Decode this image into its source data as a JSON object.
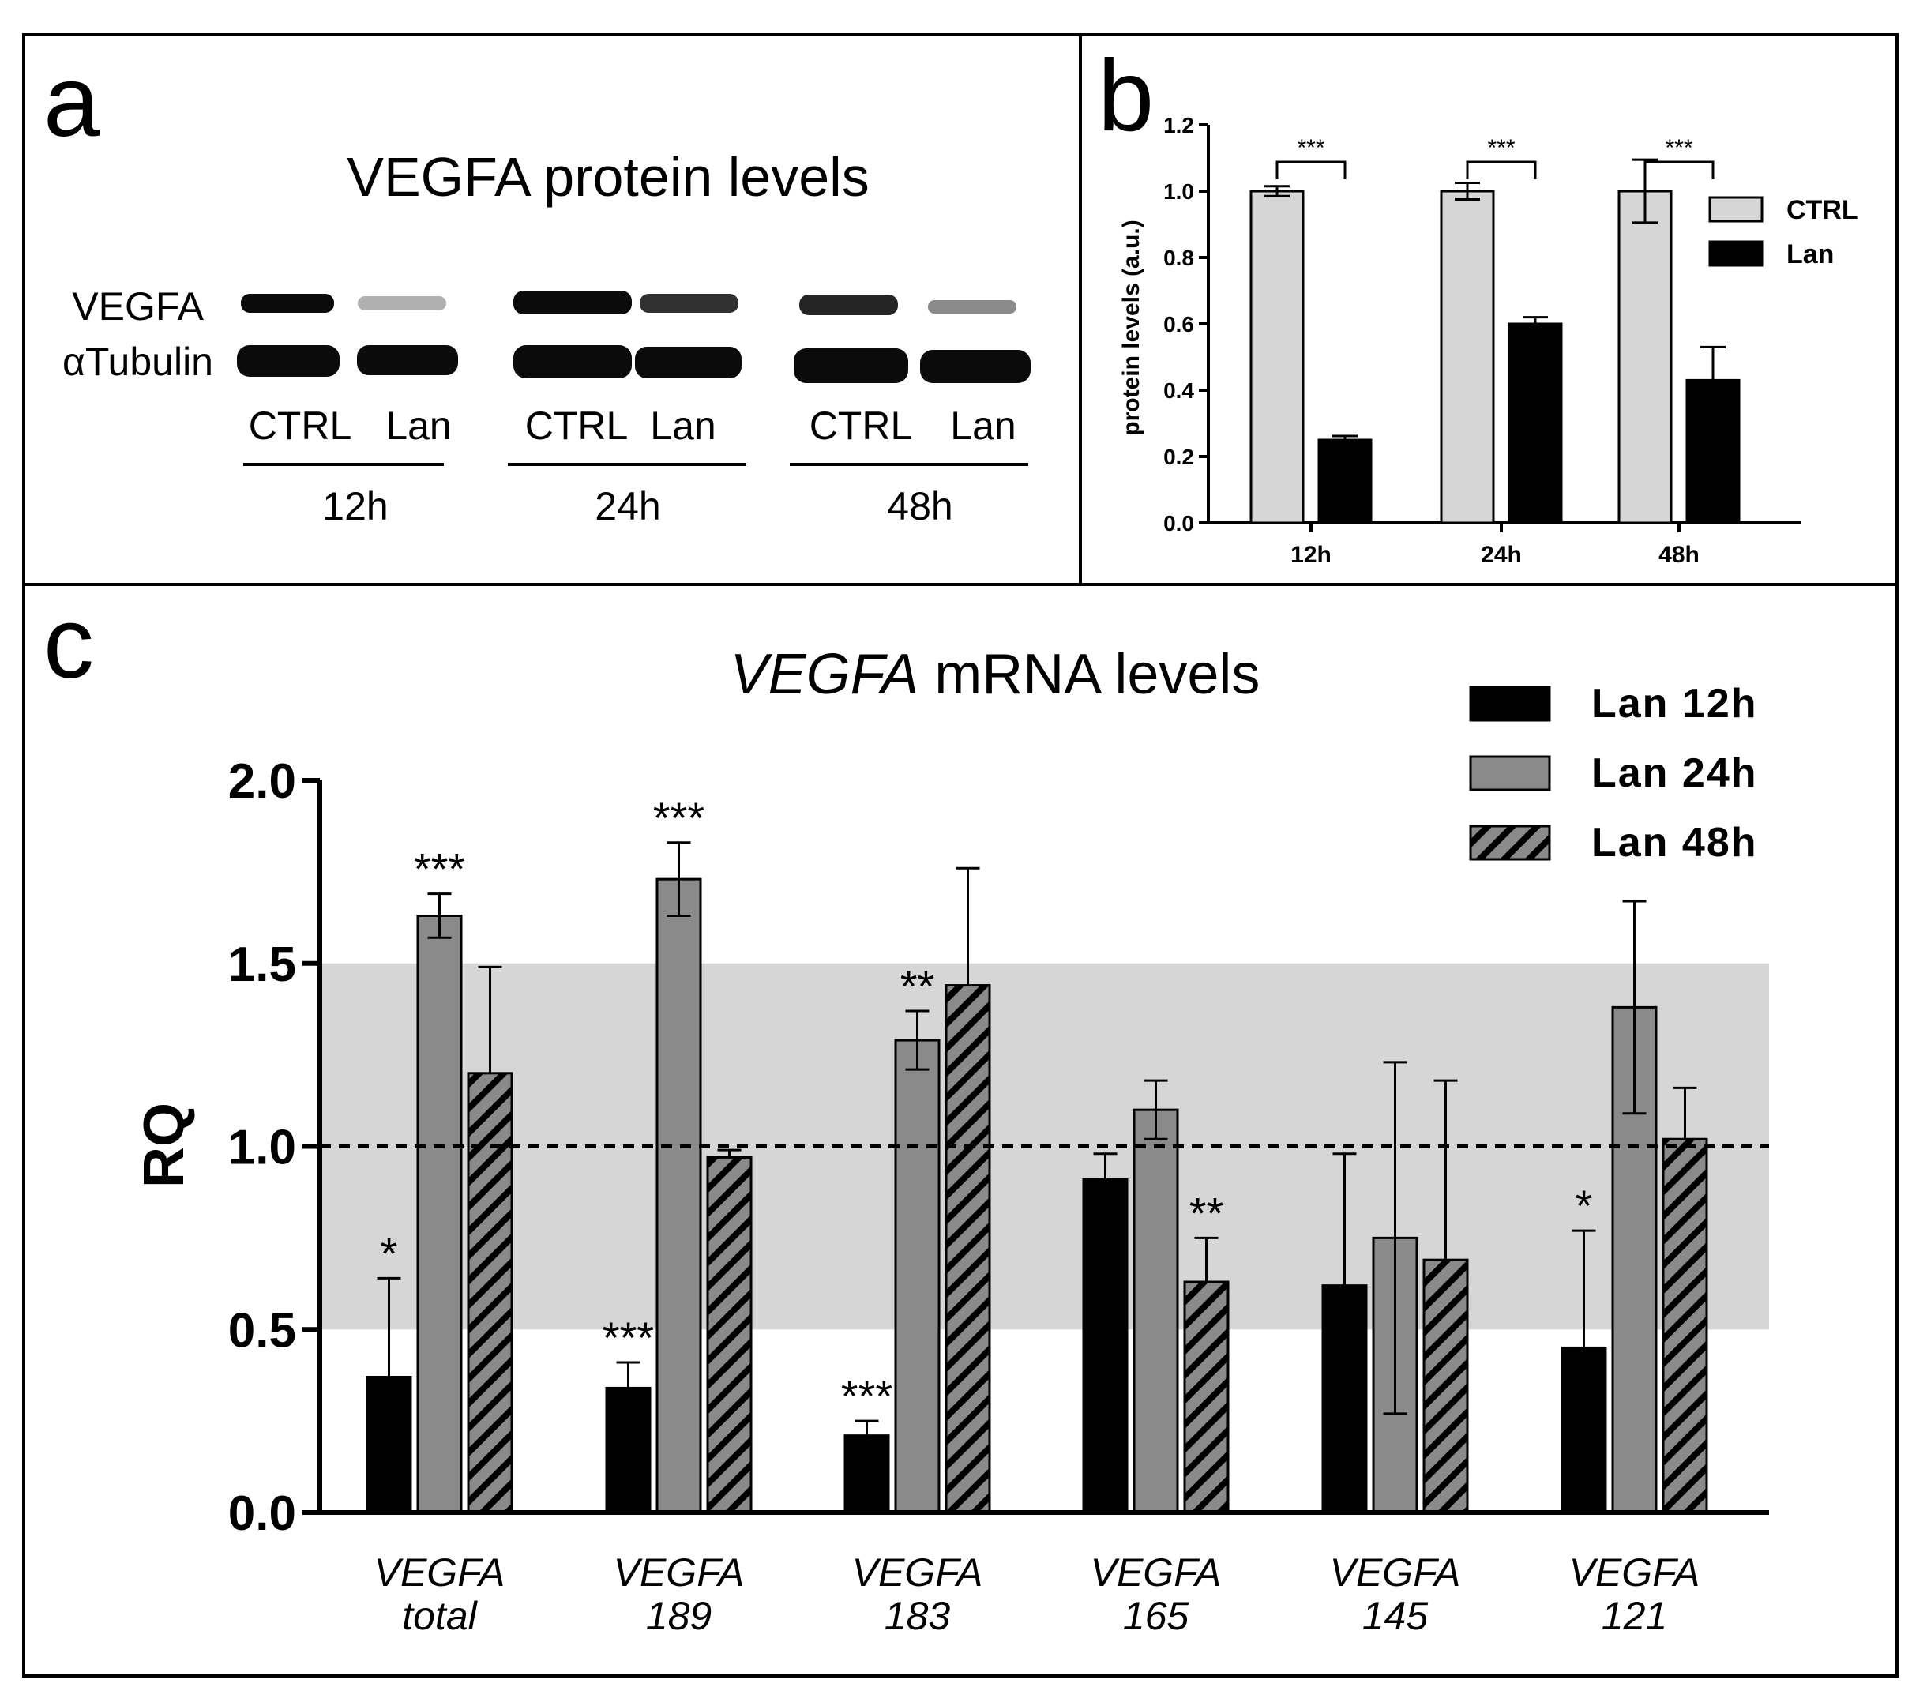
{
  "panel_a": {
    "letter": "a",
    "title": "VEGFA protein levels",
    "row_labels": [
      "VEGFA",
      "αTubulin"
    ],
    "lane_labels": [
      "CTRL",
      "Lan",
      "CTRL",
      "Lan",
      "CTRL",
      "Lan"
    ],
    "group_labels": [
      "12h",
      "24h",
      "48h"
    ]
  },
  "panel_b": {
    "letter": "b"
  },
  "panel_c": {
    "letter": "c",
    "title_italic": "VEGFA",
    "title_rest": " mRNA levels"
  },
  "chart_data": [
    {
      "id": "b",
      "type": "bar",
      "title": "",
      "xlabel": "",
      "ylabel": "protein levels (a.u.)",
      "ylim": [
        0,
        1.2
      ],
      "yticks": [
        0.0,
        0.2,
        0.4,
        0.6,
        0.8,
        1.0,
        1.2
      ],
      "ytick_labels": [
        "0.0",
        "0.2",
        "0.4",
        "0.6",
        "0.8",
        "1.0",
        "1.2"
      ],
      "categories": [
        "12h",
        "24h",
        "48h"
      ],
      "series": [
        {
          "name": "CTRL",
          "color": "#d6d6d6",
          "values": [
            1.0,
            1.0,
            1.0
          ],
          "errors": [
            0.015,
            0.025,
            0.095
          ]
        },
        {
          "name": "Lan",
          "color": "#000000",
          "values": [
            0.25,
            0.6,
            0.43
          ],
          "errors": [
            0.012,
            0.02,
            0.1
          ]
        }
      ],
      "significance": [
        "***",
        "***",
        "***"
      ],
      "legend": {
        "position": "top-right"
      }
    },
    {
      "id": "c",
      "type": "bar",
      "title": "VEGFA mRNA levels",
      "xlabel": "",
      "ylabel": "RQ",
      "ylim": [
        0,
        2.0
      ],
      "yticks": [
        0.0,
        0.5,
        1.0,
        1.5,
        2.0
      ],
      "ytick_labels": [
        "0.0",
        "0.5",
        "1.0",
        "1.5",
        "2.0"
      ],
      "reference_line": 1.0,
      "shaded_band": [
        0.5,
        1.5
      ],
      "categories": [
        {
          "line1": "VEGFA",
          "line2": "total"
        },
        {
          "line1": "VEGFA",
          "line2": "189"
        },
        {
          "line1": "VEGFA",
          "line2": "183"
        },
        {
          "line1": "VEGFA",
          "line2": "165"
        },
        {
          "line1": "VEGFA",
          "line2": "145"
        },
        {
          "line1": "VEGFA",
          "line2": "121"
        }
      ],
      "series": [
        {
          "name": "Lan 12h",
          "style": "solid",
          "color": "#000000",
          "values": [
            0.37,
            0.34,
            0.21,
            0.91,
            0.62,
            0.45
          ],
          "errors": [
            0.27,
            0.07,
            0.04,
            0.07,
            0.36,
            0.32
          ],
          "significance": [
            "*",
            "***",
            "***",
            "",
            "",
            "*"
          ]
        },
        {
          "name": "Lan 24h",
          "style": "solid",
          "color": "#8a8a8a",
          "values": [
            1.63,
            1.73,
            1.29,
            1.1,
            0.75,
            1.38
          ],
          "errors": [
            0.06,
            0.1,
            0.08,
            0.08,
            0.48,
            0.29
          ],
          "significance": [
            "***",
            "***",
            "**",
            "",
            "",
            ""
          ]
        },
        {
          "name": "Lan 48h",
          "style": "hatched",
          "color": "#8a8a8a",
          "values": [
            1.2,
            0.97,
            1.44,
            0.63,
            0.69,
            1.02
          ],
          "errors": [
            0.29,
            0.02,
            0.32,
            0.12,
            0.49,
            0.14
          ],
          "significance": [
            "",
            "",
            "",
            "**",
            "",
            ""
          ]
        }
      ],
      "legend": {
        "position": "top-right"
      }
    }
  ]
}
